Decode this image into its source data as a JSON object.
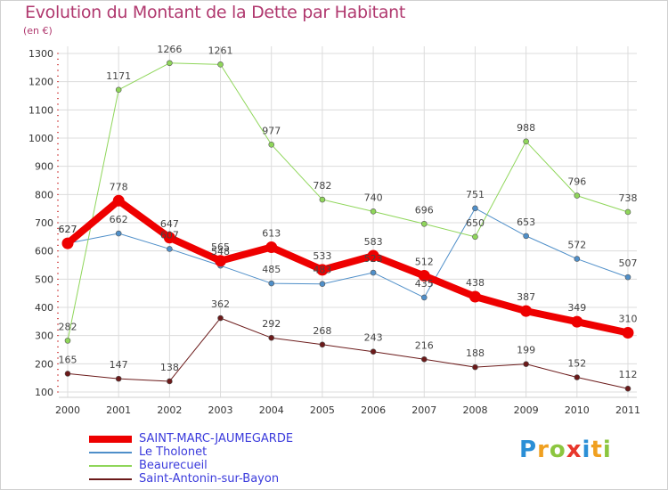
{
  "title": "Evolution du Montant de la Dette par Habitant",
  "subtitle": "(en €)",
  "logo": {
    "letters": [
      "P",
      "r",
      "o",
      "x",
      "i",
      "t",
      "i"
    ],
    "colors": [
      "#2b8fd6",
      "#f0a020",
      "#8cc63f",
      "#e8372c",
      "#2b8fd6",
      "#f0a020",
      "#8cc63f"
    ]
  },
  "chart_data": {
    "type": "line",
    "x": [
      "2000",
      "2001",
      "2002",
      "2003",
      "2004",
      "2005",
      "2006",
      "2007",
      "2008",
      "2009",
      "2010",
      "2011"
    ],
    "ylim": [
      100,
      1300
    ],
    "yticks": [
      100,
      200,
      300,
      400,
      500,
      600,
      700,
      800,
      900,
      1000,
      1100,
      1200,
      1300
    ],
    "grid": true,
    "legend": "bottom-left",
    "series": [
      {
        "name": "Le Tholonet",
        "color": "#4f8fc9",
        "width": 1,
        "values": [
          627,
          662,
          607,
          548,
          485,
          483,
          523,
          435,
          751,
          653,
          572,
          507
        ],
        "labels": [
          "627",
          "662",
          "607",
          "548",
          "485",
          "483",
          "523",
          "435",
          "751",
          "653",
          "572",
          "507"
        ]
      },
      {
        "name": "Beaurecueil",
        "color": "#8fd65a",
        "width": 1,
        "values": [
          282,
          1171,
          1266,
          1261,
          977,
          782,
          740,
          696,
          650,
          988,
          796,
          738
        ],
        "labels": [
          "282",
          "1171",
          "1266",
          "1261",
          "977",
          "782",
          "740",
          "696",
          "650",
          "988",
          "796",
          "738"
        ]
      },
      {
        "name": "Saint-Antonin-sur-Bayon",
        "color": "#6b1a1a",
        "width": 1,
        "values": [
          165,
          147,
          138,
          362,
          292,
          268,
          243,
          216,
          188,
          199,
          152,
          112
        ],
        "labels": [
          "165",
          "147",
          "138",
          "362",
          "292",
          "268",
          "243",
          "216",
          "188",
          "199",
          "152",
          "112"
        ]
      },
      {
        "name": "SAINT-MARC-JAUMEGARDE",
        "color": "#ee0000",
        "width": 8,
        "values": [
          627,
          778,
          647,
          565,
          613,
          533,
          583,
          512,
          438,
          387,
          349,
          310
        ],
        "labels": [
          "627",
          "778",
          "647",
          "565",
          "613",
          "533",
          "583",
          "512",
          "438",
          "387",
          "349",
          "310"
        ]
      }
    ],
    "legend_order": [
      "SAINT-MARC-JAUMEGARDE",
      "Le Tholonet",
      "Beaurecueil",
      "Saint-Antonin-sur-Bayon"
    ]
  }
}
